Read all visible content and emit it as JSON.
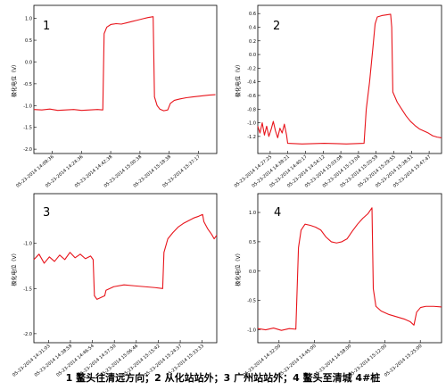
{
  "caption": "1 鳌头往清远方向；2 从化站站外；3 广州站站外；4 鳌头至清城 4#桩",
  "series_color": "#e8141b",
  "chart_data": [
    {
      "type": "line",
      "panel_label": "1",
      "ylabel": "极化电位（V）",
      "ylim": [
        -2.1,
        1.3
      ],
      "yticks": [
        "1.0",
        "0.5",
        "0.0",
        "-0.5",
        "-1.0",
        "-1.5",
        "-2.0"
      ],
      "ytick_values": [
        1.0,
        0.5,
        0.0,
        -0.5,
        -1.0,
        -1.5,
        -2.0
      ],
      "xticks": [
        "05-23-2014 14:09:36",
        "05-23-2014 14:24:36",
        "05-23-2014 14:42:38",
        "05-23-2014 15:00:38",
        "05-23-2014 15:18:38",
        "05-23-2014 15:37:17"
      ],
      "points": [
        [
          0,
          -1.09
        ],
        [
          6,
          -1.1
        ],
        [
          12,
          -1.08
        ],
        [
          18,
          -1.11
        ],
        [
          24,
          -1.1
        ],
        [
          30,
          -1.09
        ],
        [
          36,
          -1.11
        ],
        [
          42,
          -1.1
        ],
        [
          48,
          -1.09
        ],
        [
          52,
          -1.1
        ],
        [
          53,
          0.65
        ],
        [
          55,
          0.8
        ],
        [
          58,
          0.86
        ],
        [
          62,
          0.88
        ],
        [
          66,
          0.87
        ],
        [
          70,
          0.9
        ],
        [
          74,
          0.93
        ],
        [
          78,
          0.96
        ],
        [
          82,
          0.99
        ],
        [
          86,
          1.02
        ],
        [
          90,
          1.04
        ],
        [
          91,
          -0.8
        ],
        [
          93,
          -1.0
        ],
        [
          95,
          -1.08
        ],
        [
          98,
          -1.12
        ],
        [
          101,
          -1.1
        ],
        [
          103,
          -0.95
        ],
        [
          106,
          -0.88
        ],
        [
          110,
          -0.85
        ],
        [
          115,
          -0.82
        ],
        [
          120,
          -0.8
        ],
        [
          126,
          -0.78
        ],
        [
          132,
          -0.76
        ],
        [
          137,
          -0.75
        ]
      ]
    },
    {
      "type": "line",
      "panel_label": "2",
      "ylabel": "极化电位（V）",
      "ylim": [
        -1.45,
        0.72
      ],
      "yticks": [
        "0.6",
        "0.4",
        "0.2",
        "0.0",
        "-0.2",
        "-0.4",
        "-0.6",
        "-0.8",
        "-1.0",
        "-1.2"
      ],
      "ytick_values": [
        0.6,
        0.4,
        0.2,
        0.0,
        -0.2,
        -0.4,
        -0.6,
        -0.8,
        -1.0,
        -1.2
      ],
      "xticks": [
        "05-23-2014 14:27:25",
        "05-23-2014 14:38:21",
        "05-23-2014 14:40:17",
        "05-23-2014 14:54:12",
        "05-23-2014 15:03:08",
        "05-23-2014 15:13:04",
        "05-23-2014 15:20:59",
        "05-23-2014 15:29:55",
        "05-23-2014 15:38:51",
        "05-23-2014 15:47:47"
      ],
      "points": [
        [
          0,
          -1.05
        ],
        [
          2,
          -1.15
        ],
        [
          4,
          -1.0
        ],
        [
          6,
          -1.18
        ],
        [
          8,
          -1.05
        ],
        [
          10,
          -1.2
        ],
        [
          12,
          -1.1
        ],
        [
          14,
          -0.98
        ],
        [
          16,
          -1.12
        ],
        [
          18,
          -1.22
        ],
        [
          20,
          -1.08
        ],
        [
          22,
          -1.15
        ],
        [
          24,
          -1.02
        ],
        [
          26,
          -1.18
        ],
        [
          27,
          -1.3
        ],
        [
          40,
          -1.31
        ],
        [
          60,
          -1.3
        ],
        [
          80,
          -1.31
        ],
        [
          96,
          -1.3
        ],
        [
          98,
          -0.8
        ],
        [
          101,
          -0.4
        ],
        [
          104,
          0.1
        ],
        [
          106,
          0.45
        ],
        [
          108,
          0.55
        ],
        [
          112,
          0.57
        ],
        [
          116,
          0.58
        ],
        [
          120,
          0.59
        ],
        [
          121,
          0.4
        ],
        [
          122,
          -0.55
        ],
        [
          126,
          -0.7
        ],
        [
          130,
          -0.8
        ],
        [
          134,
          -0.9
        ],
        [
          138,
          -0.98
        ],
        [
          142,
          -1.04
        ],
        [
          146,
          -1.09
        ],
        [
          150,
          -1.12
        ],
        [
          154,
          -1.15
        ],
        [
          158,
          -1.19
        ],
        [
          162,
          -1.21
        ],
        [
          166,
          -1.22
        ]
      ]
    },
    {
      "type": "line",
      "panel_label": "3",
      "ylabel": "极化电位（V）",
      "ylim": [
        -2.1,
        -0.45
      ],
      "yticks": [
        "-1.0",
        "-1.5",
        "-2.0"
      ],
      "ytick_values": [
        -1.0,
        -1.5,
        -2.0
      ],
      "xticks": [
        "05-23-2014 14:31:03",
        "05-23-2014 14:38:59",
        "05-23-2014 14:46:54",
        "05-23-2014 14:57:50",
        "05-23-2014 15:06:46",
        "05-23-2014 15:15:42",
        "05-23-2014 15:24:37",
        "05-23-2014 15:33:33"
      ],
      "points": [
        [
          0,
          -1.18
        ],
        [
          4,
          -1.12
        ],
        [
          8,
          -1.22
        ],
        [
          12,
          -1.15
        ],
        [
          16,
          -1.2
        ],
        [
          20,
          -1.13
        ],
        [
          24,
          -1.18
        ],
        [
          28,
          -1.1
        ],
        [
          32,
          -1.16
        ],
        [
          36,
          -1.12
        ],
        [
          40,
          -1.17
        ],
        [
          44,
          -1.14
        ],
        [
          46,
          -1.18
        ],
        [
          47,
          -1.58
        ],
        [
          49,
          -1.62
        ],
        [
          52,
          -1.6
        ],
        [
          55,
          -1.58
        ],
        [
          56,
          -1.52
        ],
        [
          62,
          -1.48
        ],
        [
          70,
          -1.46
        ],
        [
          78,
          -1.47
        ],
        [
          86,
          -1.48
        ],
        [
          94,
          -1.49
        ],
        [
          100,
          -1.5
        ],
        [
          101,
          -1.1
        ],
        [
          104,
          -0.95
        ],
        [
          108,
          -0.88
        ],
        [
          112,
          -0.82
        ],
        [
          116,
          -0.78
        ],
        [
          120,
          -0.75
        ],
        [
          124,
          -0.72
        ],
        [
          128,
          -0.7
        ],
        [
          131,
          -0.68
        ],
        [
          132,
          -0.76
        ],
        [
          135,
          -0.84
        ],
        [
          138,
          -0.9
        ],
        [
          140,
          -0.95
        ],
        [
          142,
          -0.91
        ]
      ]
    },
    {
      "type": "line",
      "panel_label": "4",
      "ylabel": "极化电位（V）",
      "ylim": [
        -1.22,
        1.32
      ],
      "yticks": [
        "1.0",
        "0.5",
        "0.0",
        "-0.5",
        "-1.0"
      ],
      "ytick_values": [
        1.0,
        0.5,
        0.0,
        -0.5,
        -1.0
      ],
      "xticks": [
        "05-23-2014 14:32:00",
        "05-23-2014 14:45:00",
        "05-23-2014 14:58:00",
        "05-23-2014 15:12:00",
        "05-23-2014 15:25:00"
      ],
      "points": [
        [
          0,
          -0.98
        ],
        [
          6,
          -1.0
        ],
        [
          12,
          -0.97
        ],
        [
          18,
          -1.01
        ],
        [
          24,
          -0.98
        ],
        [
          29,
          -0.99
        ],
        [
          31,
          0.4
        ],
        [
          33,
          0.7
        ],
        [
          36,
          0.8
        ],
        [
          40,
          0.78
        ],
        [
          44,
          0.75
        ],
        [
          48,
          0.7
        ],
        [
          52,
          0.58
        ],
        [
          56,
          0.5
        ],
        [
          60,
          0.48
        ],
        [
          64,
          0.5
        ],
        [
          68,
          0.55
        ],
        [
          72,
          0.68
        ],
        [
          76,
          0.8
        ],
        [
          80,
          0.9
        ],
        [
          84,
          0.98
        ],
        [
          87,
          1.08
        ],
        [
          88,
          -0.3
        ],
        [
          90,
          -0.6
        ],
        [
          94,
          -0.68
        ],
        [
          100,
          -0.74
        ],
        [
          106,
          -0.78
        ],
        [
          112,
          -0.82
        ],
        [
          116,
          -0.86
        ],
        [
          119,
          -0.92
        ],
        [
          121,
          -0.7
        ],
        [
          124,
          -0.62
        ],
        [
          128,
          -0.6
        ],
        [
          134,
          -0.6
        ],
        [
          140,
          -0.61
        ]
      ]
    }
  ]
}
